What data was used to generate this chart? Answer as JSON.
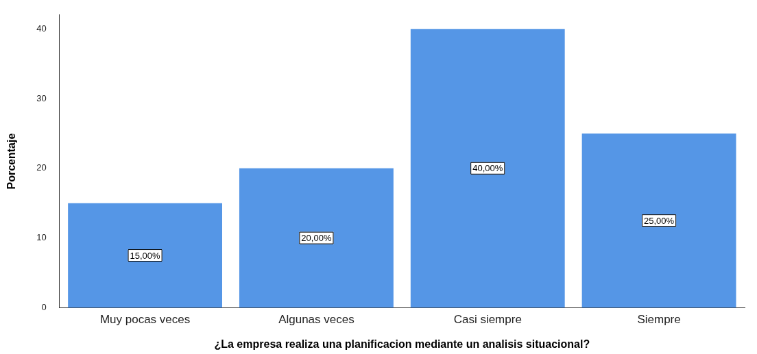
{
  "chart_data": {
    "type": "bar",
    "xlabel": "¿La empresa realiza una planificacion mediante un analisis situacional?",
    "ylabel": "Porcentaje",
    "categories": [
      "Muy pocas veces",
      "Algunas veces",
      "Casi siempre",
      "Siempre"
    ],
    "values": [
      15,
      20,
      40,
      25
    ],
    "color": "#5596e6",
    "value_labels": [
      "15,00%",
      "20,00%",
      "40,00%",
      "25,00%"
    ],
    "ylim": [
      0,
      42
    ],
    "yticks": [
      0,
      10,
      20,
      30,
      40
    ],
    "grid": false,
    "legend": false
  }
}
